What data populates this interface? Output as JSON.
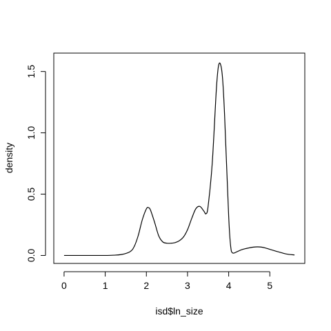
{
  "chart_data": {
    "type": "line",
    "title": "",
    "xlabel": "isd$ln_size",
    "ylabel": "density",
    "xlim": [
      -0.25,
      5.85
    ],
    "ylim": [
      -0.065,
      1.65
    ],
    "x_ticks": [
      0,
      1,
      2,
      3,
      4,
      5
    ],
    "x_tick_labels": [
      "0",
      "1",
      "2",
      "3",
      "4",
      "5"
    ],
    "y_ticks": [
      0.0,
      0.5,
      1.0,
      1.5
    ],
    "y_tick_labels": [
      "0.0",
      "0.5",
      "1.0",
      "1.5"
    ],
    "grid": false,
    "legend": "none",
    "line_color": "#000000",
    "series": [
      {
        "x": [
          0.0,
          0.5,
          1.0,
          1.2,
          1.4,
          1.6,
          1.7,
          1.8,
          1.9,
          2.0,
          2.05,
          2.1,
          2.2,
          2.3,
          2.4,
          2.5,
          2.6,
          2.7,
          2.8,
          2.9,
          3.0,
          3.1,
          3.2,
          3.3,
          3.4,
          3.45,
          3.5,
          3.6,
          3.7,
          3.75,
          3.8,
          3.85,
          3.9,
          4.0,
          4.05,
          4.1,
          4.2,
          4.3,
          4.4,
          4.5,
          4.6,
          4.7,
          4.8,
          4.9,
          5.0,
          5.2,
          5.4,
          5.6
        ],
        "y": [
          0.0,
          0.0,
          0.0,
          0.002,
          0.008,
          0.03,
          0.07,
          0.16,
          0.29,
          0.38,
          0.39,
          0.37,
          0.27,
          0.16,
          0.11,
          0.1,
          0.1,
          0.105,
          0.12,
          0.15,
          0.21,
          0.3,
          0.38,
          0.4,
          0.36,
          0.34,
          0.4,
          0.75,
          1.35,
          1.54,
          1.56,
          1.45,
          1.15,
          0.32,
          0.07,
          0.02,
          0.03,
          0.045,
          0.055,
          0.062,
          0.068,
          0.07,
          0.068,
          0.06,
          0.05,
          0.03,
          0.012,
          0.004
        ]
      }
    ]
  }
}
